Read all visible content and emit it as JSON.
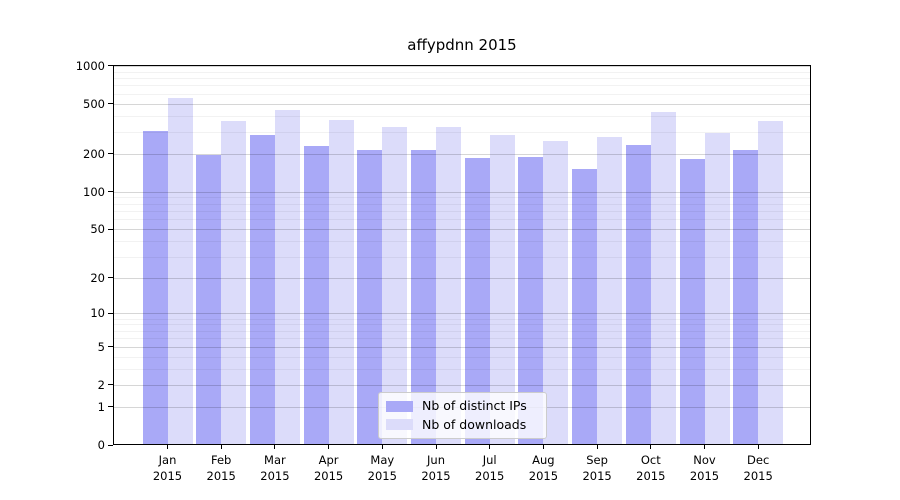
{
  "chart_data": {
    "type": "bar",
    "title": "affypdnn 2015",
    "year_label": "2015",
    "categories": [
      "Jan",
      "Feb",
      "Mar",
      "Apr",
      "May",
      "Jun",
      "Jul",
      "Aug",
      "Sep",
      "Oct",
      "Nov",
      "Dec"
    ],
    "series": [
      {
        "name": "Nb of distinct IPs",
        "color": "#a9a9f7",
        "values": [
          300,
          192,
          277,
          225,
          209,
          209,
          183,
          185,
          150,
          230,
          180,
          212
        ]
      },
      {
        "name": "Nb of downloads",
        "color": "#dcdcfa",
        "values": [
          545,
          357,
          439,
          368,
          320,
          322,
          277,
          248,
          267,
          421,
          289,
          357
        ]
      }
    ],
    "xlabel": "",
    "ylabel": "",
    "y_scale": "log10(value+1)",
    "ylim": [
      0,
      1000
    ],
    "y_ticks": [
      0,
      1,
      2,
      5,
      10,
      20,
      50,
      100,
      200,
      500,
      1000
    ],
    "y_minor_ticks": [
      3,
      4,
      6,
      7,
      8,
      9,
      30,
      40,
      60,
      70,
      80,
      90,
      300,
      400,
      600,
      700,
      800,
      900
    ],
    "grid": "horizontal major+minor",
    "legend_position": "lower center",
    "colors": {
      "background": "#ffffff",
      "axis": "#000000",
      "grid_major": "rgba(0,0,0,0.16)",
      "grid_minor": "rgba(0,0,0,0.05)",
      "legend_border": "#cccccc"
    }
  }
}
